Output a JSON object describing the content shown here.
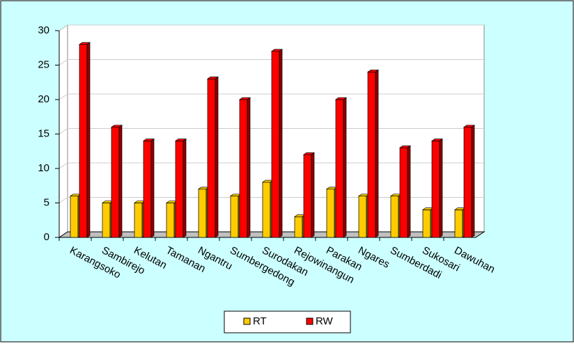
{
  "chart_data": {
    "type": "bar3d",
    "categories": [
      "Karangsoko",
      "Sambirejo",
      "Kelutan",
      "Tamanan",
      "Ngantru",
      "Sumbergedong",
      "Surodakan",
      "Rejowinangun",
      "Parakan",
      "Ngares",
      "Sumberdadi",
      "Sukosari",
      "Dawuhan"
    ],
    "series": [
      {
        "name": "RT",
        "color": "#ffcc00",
        "values": [
          6,
          5,
          5,
          5,
          7,
          6,
          8,
          3,
          7,
          6,
          6,
          4,
          4
        ]
      },
      {
        "name": "RW",
        "color": "#ff0000",
        "values": [
          28,
          16,
          14,
          14,
          23,
          20,
          27,
          12,
          20,
          24,
          13,
          14,
          16
        ]
      }
    ],
    "ylim": [
      0,
      30
    ],
    "yticks": [
      0,
      5,
      10,
      15,
      20,
      25,
      30
    ],
    "grid": true,
    "legend": "bottom"
  }
}
